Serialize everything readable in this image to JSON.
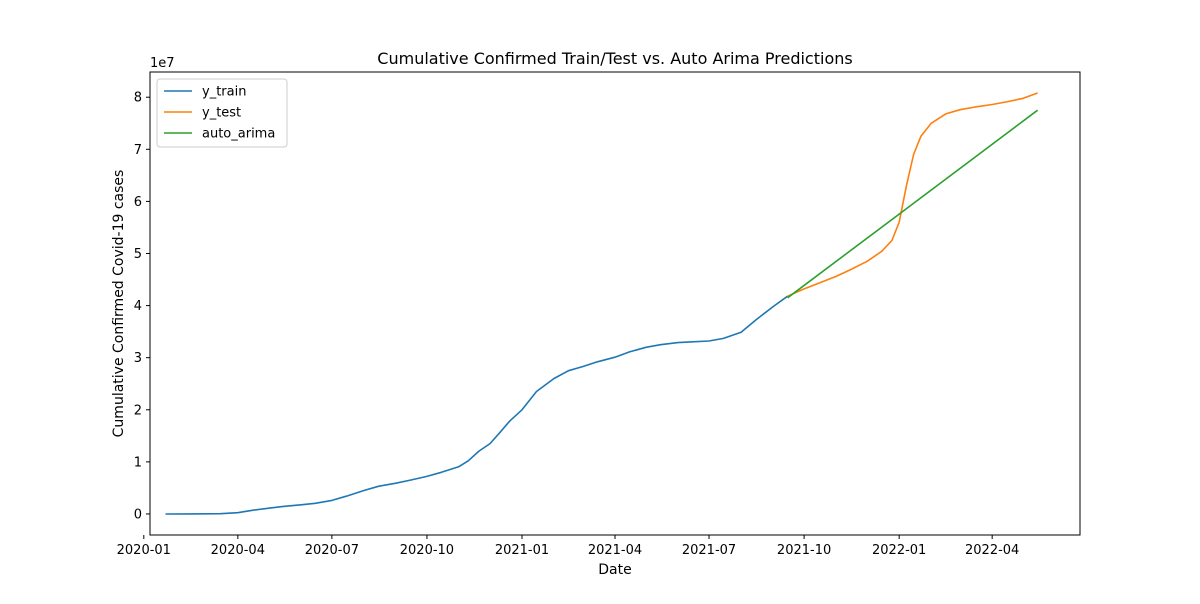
{
  "chart_data": {
    "type": "line",
    "title": "Cumulative Confirmed Train/Test vs. Auto Arima Predictions",
    "xlabel": "Date",
    "ylabel": "Cumulative Confirmed Covid-19 cases",
    "y_offset_label": "1e7",
    "x_axis_type": "date",
    "xlim": [
      "2020-01-07",
      "2022-06-25"
    ],
    "ylim": [
      -4040000,
      84840000
    ],
    "x_ticks": [
      {
        "value": "2020-01-01",
        "label": "2020-01"
      },
      {
        "value": "2020-04-01",
        "label": "2020-04"
      },
      {
        "value": "2020-07-01",
        "label": "2020-07"
      },
      {
        "value": "2020-10-01",
        "label": "2020-10"
      },
      {
        "value": "2021-01-01",
        "label": "2021-01"
      },
      {
        "value": "2021-04-01",
        "label": "2021-04"
      },
      {
        "value": "2021-07-01",
        "label": "2021-07"
      },
      {
        "value": "2021-10-01",
        "label": "2021-10"
      },
      {
        "value": "2022-01-01",
        "label": "2022-01"
      },
      {
        "value": "2022-04-01",
        "label": "2022-04"
      }
    ],
    "y_ticks": [
      {
        "value": 0,
        "label": "0"
      },
      {
        "value": 10000000,
        "label": "1"
      },
      {
        "value": 20000000,
        "label": "2"
      },
      {
        "value": 30000000,
        "label": "3"
      },
      {
        "value": 40000000,
        "label": "4"
      },
      {
        "value": 50000000,
        "label": "5"
      },
      {
        "value": 60000000,
        "label": "6"
      },
      {
        "value": 70000000,
        "label": "7"
      },
      {
        "value": 80000000,
        "label": "8"
      }
    ],
    "grid": false,
    "legend_position": "top-left",
    "series": [
      {
        "name": "y_train",
        "color": "#1f77b4",
        "points": [
          [
            "2020-01-22",
            0
          ],
          [
            "2020-02-15",
            10000
          ],
          [
            "2020-03-15",
            50000
          ],
          [
            "2020-04-01",
            250000
          ],
          [
            "2020-04-15",
            700000
          ],
          [
            "2020-05-01",
            1100000
          ],
          [
            "2020-05-15",
            1450000
          ],
          [
            "2020-06-01",
            1750000
          ],
          [
            "2020-06-15",
            2050000
          ],
          [
            "2020-07-01",
            2600000
          ],
          [
            "2020-07-15",
            3400000
          ],
          [
            "2020-08-01",
            4500000
          ],
          [
            "2020-08-15",
            5300000
          ],
          [
            "2020-09-01",
            5900000
          ],
          [
            "2020-09-15",
            6500000
          ],
          [
            "2020-10-01",
            7200000
          ],
          [
            "2020-10-15",
            8000000
          ],
          [
            "2020-11-01",
            9100000
          ],
          [
            "2020-11-10",
            10200000
          ],
          [
            "2020-11-20",
            12000000
          ],
          [
            "2020-12-01",
            13500000
          ],
          [
            "2020-12-10",
            15500000
          ],
          [
            "2020-12-20",
            17800000
          ],
          [
            "2021-01-01",
            20000000
          ],
          [
            "2021-01-15",
            23500000
          ],
          [
            "2021-02-01",
            26000000
          ],
          [
            "2021-02-15",
            27500000
          ],
          [
            "2021-03-01",
            28300000
          ],
          [
            "2021-03-15",
            29200000
          ],
          [
            "2021-04-01",
            30100000
          ],
          [
            "2021-04-15",
            31100000
          ],
          [
            "2021-05-01",
            32000000
          ],
          [
            "2021-05-15",
            32500000
          ],
          [
            "2021-06-01",
            32900000
          ],
          [
            "2021-06-15",
            33050000
          ],
          [
            "2021-07-01",
            33200000
          ],
          [
            "2021-07-15",
            33700000
          ],
          [
            "2021-08-01",
            34900000
          ],
          [
            "2021-08-15",
            37200000
          ],
          [
            "2021-09-01",
            39800000
          ],
          [
            "2021-09-15",
            41800000
          ]
        ]
      },
      {
        "name": "y_test",
        "color": "#ff7f0e",
        "points": [
          [
            "2021-09-15",
            41800000
          ],
          [
            "2021-10-01",
            43200000
          ],
          [
            "2021-10-15",
            44300000
          ],
          [
            "2021-11-01",
            45600000
          ],
          [
            "2021-11-15",
            46900000
          ],
          [
            "2021-12-01",
            48500000
          ],
          [
            "2021-12-15",
            50400000
          ],
          [
            "2021-12-25",
            52500000
          ],
          [
            "2022-01-01",
            56000000
          ],
          [
            "2022-01-08",
            63000000
          ],
          [
            "2022-01-15",
            69000000
          ],
          [
            "2022-01-22",
            72500000
          ],
          [
            "2022-02-01",
            75000000
          ],
          [
            "2022-02-15",
            76800000
          ],
          [
            "2022-03-01",
            77600000
          ],
          [
            "2022-03-15",
            78100000
          ],
          [
            "2022-04-01",
            78600000
          ],
          [
            "2022-04-15",
            79100000
          ],
          [
            "2022-05-01",
            79800000
          ],
          [
            "2022-05-15",
            80800000
          ]
        ]
      },
      {
        "name": "auto_arima",
        "color": "#2ca02c",
        "points": [
          [
            "2021-09-15",
            41500000
          ],
          [
            "2022-05-15",
            77500000
          ]
        ]
      }
    ]
  }
}
